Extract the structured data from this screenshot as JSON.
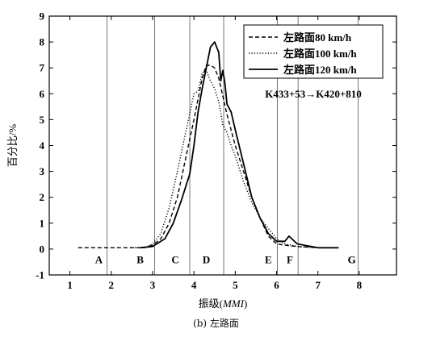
{
  "chart_data": {
    "type": "line",
    "xlabel": "振级(MMI)",
    "ylabel": "百分比/%",
    "xlim": [
      0.5,
      8.9
    ],
    "ylim": [
      -1,
      9
    ],
    "xticks": [
      1,
      2,
      3,
      4,
      5,
      6,
      7,
      8
    ],
    "yticks": [
      -1,
      0,
      1,
      2,
      3,
      4,
      5,
      6,
      7,
      8,
      9
    ],
    "grid": false,
    "legend_position": "top-right",
    "annotation": "K433+53→K420+810",
    "zones": [
      {
        "label": "A",
        "boundary": 1.9,
        "label_x": 1.7
      },
      {
        "label": "B",
        "boundary": 3.05,
        "label_x": 2.7
      },
      {
        "label": "C",
        "boundary": 3.9,
        "label_x": 3.55
      },
      {
        "label": "D",
        "boundary": 4.72,
        "label_x": 4.3
      },
      {
        "label": "E",
        "boundary": 6.02,
        "label_x": 5.8
      },
      {
        "label": "F",
        "boundary": 6.52,
        "label_x": 6.32
      },
      {
        "label": "G",
        "boundary": 7.97,
        "label_x": 7.82
      }
    ],
    "series": [
      {
        "name": "左路面80 km/h",
        "style": "dashed",
        "x": [
          1.2,
          1.5,
          2.0,
          2.5,
          2.8,
          3.0,
          3.2,
          3.4,
          3.6,
          3.8,
          4.0,
          4.2,
          4.3,
          4.4,
          4.5,
          4.6,
          4.7,
          4.8,
          4.9,
          5.0,
          5.2,
          5.4,
          5.6,
          5.8,
          6.0,
          6.2,
          6.5,
          7.0,
          7.5
        ],
        "y": [
          0.05,
          0.05,
          0.05,
          0.05,
          0.05,
          0.15,
          0.4,
          1.0,
          2.0,
          3.5,
          5.0,
          6.6,
          7.1,
          7.1,
          7.0,
          6.6,
          5.9,
          5.2,
          4.6,
          4.0,
          3.0,
          2.0,
          1.2,
          0.5,
          0.2,
          0.15,
          0.1,
          0.05,
          0.05
        ]
      },
      {
        "name": "左路面100 km/h",
        "style": "dotted",
        "x": [
          2.5,
          2.8,
          3.0,
          3.2,
          3.4,
          3.6,
          3.8,
          4.0,
          4.1,
          4.2,
          4.3,
          4.4,
          4.5,
          4.6,
          4.7,
          4.8,
          4.9,
          5.0,
          5.2,
          5.4,
          5.6,
          5.8,
          6.0,
          6.2,
          6.5,
          7.0,
          7.5
        ],
        "y": [
          0.05,
          0.05,
          0.2,
          0.6,
          1.6,
          3.0,
          4.5,
          6.0,
          6.1,
          6.8,
          6.9,
          6.5,
          6.2,
          5.7,
          4.8,
          4.5,
          4.0,
          3.6,
          2.6,
          1.8,
          1.2,
          0.8,
          0.4,
          0.2,
          0.1,
          0.05,
          0.05
        ]
      },
      {
        "name": "左路面120 km/h",
        "style": "solid",
        "x": [
          2.7,
          3.0,
          3.1,
          3.3,
          3.5,
          3.7,
          3.9,
          4.0,
          4.1,
          4.2,
          4.3,
          4.4,
          4.5,
          4.6,
          4.65,
          4.7,
          4.75,
          4.8,
          4.9,
          5.0,
          5.2,
          5.4,
          5.6,
          5.8,
          6.0,
          6.2,
          6.3,
          6.5,
          7.0,
          7.5
        ],
        "y": [
          0.05,
          0.1,
          0.2,
          0.4,
          1.0,
          1.9,
          2.9,
          4.0,
          5.3,
          6.2,
          7.0,
          7.8,
          8.0,
          7.6,
          6.5,
          6.9,
          6.4,
          5.6,
          5.3,
          4.6,
          3.3,
          2.0,
          1.2,
          0.6,
          0.3,
          0.3,
          0.5,
          0.2,
          0.05,
          0.05
        ]
      }
    ]
  },
  "caption": "(b) 左路面"
}
